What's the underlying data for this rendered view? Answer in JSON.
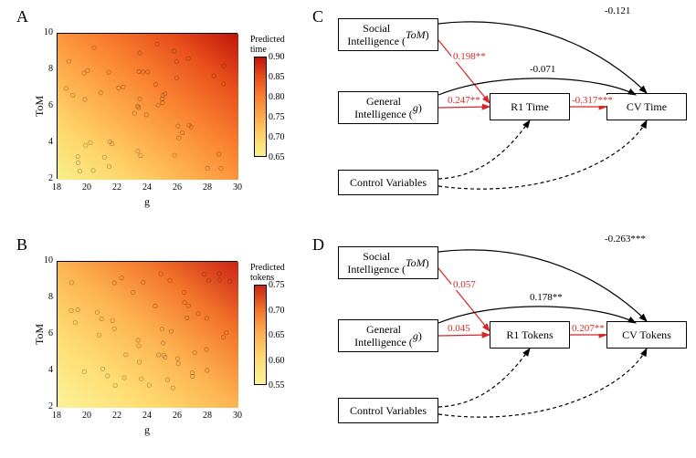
{
  "labels": {
    "A": "A",
    "B": "B",
    "C": "C",
    "D": "D"
  },
  "heatmaps": {
    "A": {
      "ylabel": "ToM",
      "xlabel": "g",
      "cbar_title": "Predicted\ntime",
      "xlim": [
        18,
        30
      ],
      "ylim": [
        2,
        10
      ],
      "xticks": [
        18,
        20,
        22,
        24,
        26,
        28,
        30
      ],
      "yticks": [
        2,
        4,
        6,
        8,
        10
      ],
      "cbar_ticks": [
        0.65,
        0.7,
        0.75,
        0.8,
        0.85,
        0.9
      ],
      "gradient_stops": [
        {
          "p": 0,
          "c": "#f8f08a"
        },
        {
          "p": 20,
          "c": "#fed56a"
        },
        {
          "p": 40,
          "c": "#feab4a"
        },
        {
          "p": 60,
          "c": "#f97f2f"
        },
        {
          "p": 80,
          "c": "#e8501b"
        },
        {
          "p": 100,
          "c": "#c1140b"
        }
      ]
    },
    "B": {
      "ylabel": "ToM",
      "xlabel": "g",
      "cbar_title": "Predicted\ntokens",
      "xlim": [
        18,
        30
      ],
      "ylim": [
        2,
        10
      ],
      "xticks": [
        18,
        20,
        22,
        24,
        26,
        28,
        30
      ],
      "yticks": [
        2,
        4,
        6,
        8,
        10
      ],
      "cbar_ticks": [
        0.55,
        0.6,
        0.65,
        0.7,
        0.75
      ],
      "gradient_stops": [
        {
          "p": 0,
          "c": "#fbf29a"
        },
        {
          "p": 25,
          "c": "#fedd72"
        },
        {
          "p": 50,
          "c": "#fdb452"
        },
        {
          "p": 75,
          "c": "#f3752a"
        },
        {
          "p": 100,
          "c": "#cc2416"
        }
      ]
    }
  },
  "diagrams": {
    "C": {
      "social": "Social\nIntelligence (ToM)",
      "general": "General\nIntelligence (g)",
      "control": "Control Variables",
      "mediator": "R1 Time",
      "outcome": "CV Time",
      "e_top": {
        "text": "-0.121",
        "red": false
      },
      "e_mid": {
        "text": "-0.071",
        "red": false
      },
      "e_social_med": {
        "text": "0.198**",
        "red": true
      },
      "e_general_med": {
        "text": "0.247**",
        "red": true
      },
      "e_med_out": {
        "text": "-0.317***",
        "red": true
      }
    },
    "D": {
      "social": "Social\nIntelligence (ToM)",
      "general": "General\nIntelligence (g)",
      "control": "Control Variables",
      "mediator": "R1 Tokens",
      "outcome": "CV Tokens",
      "e_top": {
        "text": "-0.263***",
        "red": false
      },
      "e_mid": {
        "text": "0.178**",
        "red": false
      },
      "e_social_med": {
        "text": "0.057",
        "red": true
      },
      "e_general_med": {
        "text": "0.045",
        "red": true
      },
      "e_med_out": {
        "text": "0.207**",
        "red": true
      }
    }
  },
  "italic": {
    "tom": "ToM",
    "g": "g"
  }
}
